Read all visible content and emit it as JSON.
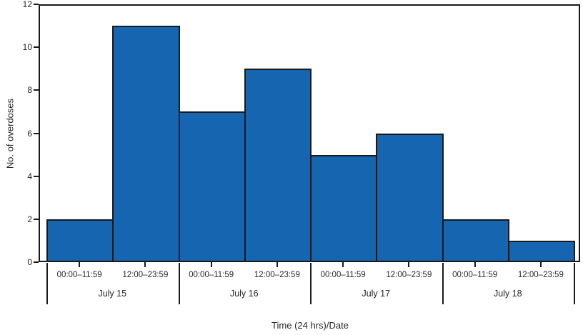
{
  "chart_data": {
    "type": "bar",
    "title": "",
    "ylabel": "No. of overdoses",
    "xlabel": "Time (24 hrs)/Date",
    "ylim": [
      0,
      12
    ],
    "yticks": [
      0,
      2,
      4,
      6,
      8,
      10,
      12
    ],
    "grid": false,
    "legend_position": "none",
    "categories": [
      "July 15 00:00–11:59",
      "July 15 12:00–23:59",
      "July 16 00:00–11:59",
      "July 16 12:00–23:59",
      "July 17 00:00–11:59",
      "July 17 12:00–23:59",
      "July 18 00:00–11:59",
      "July 18 12:00–23:59"
    ],
    "values": [
      2,
      11,
      7,
      9,
      5,
      6,
      2,
      1
    ],
    "groups": [
      {
        "date": "July 15",
        "bars": [
          {
            "label": "00:00–11:59",
            "value": 2
          },
          {
            "label": "12:00–23:59",
            "value": 11
          }
        ]
      },
      {
        "date": "July 16",
        "bars": [
          {
            "label": "00:00–11:59",
            "value": 7
          },
          {
            "label": "12:00–23:59",
            "value": 9
          }
        ]
      },
      {
        "date": "July 17",
        "bars": [
          {
            "label": "00:00–11:59",
            "value": 5
          },
          {
            "label": "12:00–23:59",
            "value": 6
          }
        ]
      },
      {
        "date": "July 18",
        "bars": [
          {
            "label": "00:00–11:59",
            "value": 2
          },
          {
            "label": "12:00–23:59",
            "value": 1
          }
        ]
      }
    ],
    "colors": {
      "bar_fill": "#1565b1",
      "bar_stroke": "#1a1a1a",
      "axis": "#1a1a1a",
      "text": "#262626",
      "background": "#ffffff"
    }
  }
}
